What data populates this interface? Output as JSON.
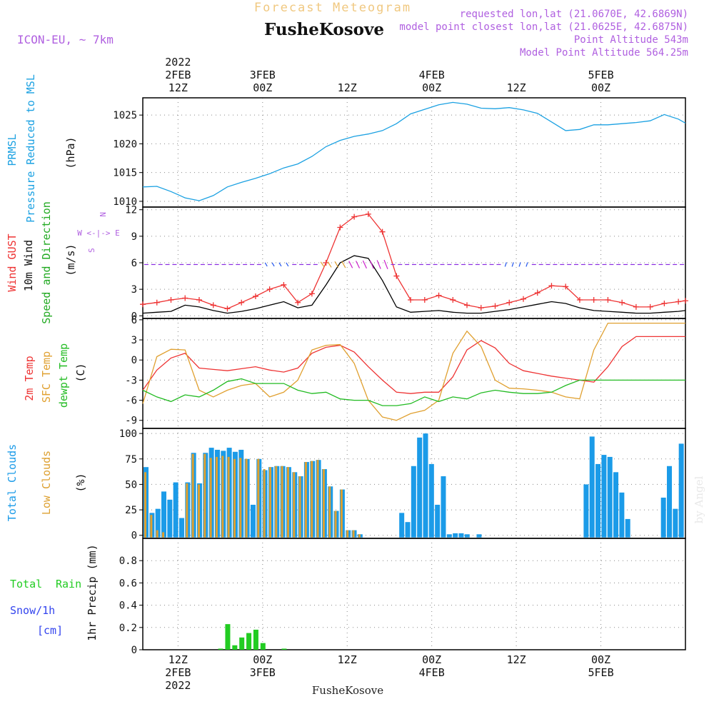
{
  "header": {
    "title_top": "Forecast Meteogram",
    "station": "FusheKosove",
    "model": "ICON-EU, ~ 7km",
    "requested_point": "requested lon,lat (21.0670E, 42.6869N)",
    "model_point": "model point closest lon,lat (21.0625E, 42.6875N)",
    "point_altitude": "Point Altitude 543m",
    "model_altitude": "Model Point Altitude 564.25m",
    "footer_station": "FusheKosove",
    "watermark": "by Angel"
  },
  "colors": {
    "pressure": "#1ba1e2",
    "gust": "#ee3333",
    "wind": "#000000",
    "direction": "#22aa22",
    "temp": "#ee3333",
    "sfc_temp": "#e0a030",
    "dewpt": "#22bb22",
    "total_clouds": "#1b9be8",
    "low_clouds": "#dda030",
    "rain": "#22cc22",
    "snow": "#3344ee",
    "title_purple": "#b060e0",
    "grid": "#888888"
  },
  "time_axis": {
    "top_labels": [
      {
        "day": "2022",
        "date": "2FEB",
        "hour": "12Z"
      },
      {
        "date": "3FEB",
        "hour": "00Z"
      },
      {
        "hour": "12Z"
      },
      {
        "date": "4FEB",
        "hour": "00Z"
      },
      {
        "hour": "12Z"
      },
      {
        "date": "5FEB",
        "hour": "00Z"
      }
    ],
    "bottom_labels": [
      {
        "hour": "12Z",
        "date": "2FEB",
        "year": "2022"
      },
      {
        "hour": "00Z",
        "date": "3FEB"
      },
      {
        "hour": "12Z"
      },
      {
        "hour": "00Z",
        "date": "4FEB"
      },
      {
        "hour": "12Z"
      },
      {
        "hour": "00Z",
        "date": "5FEB"
      }
    ],
    "start_hour": 7,
    "end_hour": 84
  },
  "chart_data": [
    {
      "type": "line",
      "title": "PRMSL Pressure Reduced to MSL",
      "ylabel": "(hPa)",
      "ylim": [
        1009,
        1028
      ],
      "yticks": [
        1010,
        1015,
        1020,
        1025
      ],
      "x_hours": [
        7,
        9,
        11,
        13,
        15,
        17,
        19,
        21,
        23,
        25,
        27,
        29,
        31,
        33,
        35,
        37,
        39,
        41,
        43,
        45,
        47,
        49,
        51,
        53,
        55,
        57,
        59,
        61,
        63,
        65,
        67,
        69,
        71,
        73,
        75,
        77,
        79,
        81,
        83,
        84
      ],
      "values": [
        1012.5,
        1012.6,
        1011.7,
        1010.6,
        1010.1,
        1011.0,
        1012.5,
        1013.3,
        1014.0,
        1014.8,
        1015.8,
        1016.5,
        1017.8,
        1019.5,
        1020.6,
        1021.3,
        1021.7,
        1022.3,
        1023.5,
        1025.2,
        1026.0,
        1026.8,
        1027.2,
        1026.9,
        1026.2,
        1026.1,
        1026.3,
        1025.9,
        1025.3,
        1023.8,
        1022.3,
        1022.5,
        1023.3,
        1023.3,
        1023.5,
        1023.7,
        1024.0,
        1025.1,
        1024.3,
        1023.6
      ],
      "series_name": "PRMSL"
    },
    {
      "type": "line",
      "title": "Wind GUST / 10m Wind Speed and Direction",
      "ylabel": "(m/s)",
      "ylim": [
        -0.3,
        12.3
      ],
      "yticks": [
        0,
        3,
        6,
        9,
        12
      ],
      "direction_legend": [
        "N",
        "W <-|-> E",
        "S"
      ],
      "x_hours": [
        7,
        9,
        11,
        13,
        15,
        17,
        19,
        21,
        23,
        25,
        27,
        29,
        31,
        33,
        35,
        37,
        39,
        41,
        43,
        45,
        47,
        49,
        51,
        53,
        55,
        57,
        59,
        61,
        63,
        65,
        67,
        69,
        71,
        73,
        75,
        77,
        79,
        81,
        83,
        84
      ],
      "series": [
        {
          "name": "Wind GUST",
          "values": [
            1.3,
            1.5,
            1.8,
            2.0,
            1.8,
            1.2,
            0.8,
            1.5,
            2.2,
            3.0,
            3.5,
            1.5,
            2.5,
            6.0,
            10.0,
            11.2,
            11.5,
            9.5,
            4.5,
            1.8,
            1.8,
            2.3,
            1.8,
            1.2,
            0.9,
            1.1,
            1.5,
            1.9,
            2.6,
            3.4,
            3.3,
            1.8,
            1.8,
            1.8,
            1.5,
            1.0,
            1.0,
            1.4,
            1.6,
            1.7
          ]
        },
        {
          "name": "10m Wind",
          "values": [
            0.3,
            0.4,
            0.5,
            1.2,
            1.0,
            0.6,
            0.3,
            0.5,
            0.8,
            1.2,
            1.6,
            0.9,
            1.2,
            3.5,
            6.0,
            6.8,
            6.5,
            4.0,
            1.0,
            0.4,
            0.5,
            0.6,
            0.4,
            0.3,
            0.3,
            0.5,
            0.7,
            1.0,
            1.3,
            1.6,
            1.4,
            0.9,
            0.6,
            0.5,
            0.4,
            0.3,
            0.3,
            0.4,
            0.5,
            0.6
          ]
        }
      ]
    },
    {
      "type": "line",
      "title": "2m Temp / SFC Temp / dewpt Temp",
      "ylabel": "(C)",
      "ylim": [
        -10.2,
        6.2
      ],
      "yticks": [
        -9,
        -6,
        -3,
        0,
        3,
        6
      ],
      "x_hours": [
        7,
        9,
        11,
        13,
        15,
        17,
        19,
        21,
        23,
        25,
        27,
        29,
        31,
        33,
        35,
        37,
        39,
        41,
        43,
        45,
        47,
        49,
        51,
        53,
        55,
        57,
        59,
        61,
        63,
        65,
        67,
        69,
        71,
        73,
        75,
        77,
        79,
        81,
        83,
        84
      ],
      "series": [
        {
          "name": "2m Temp",
          "values": [
            -4.5,
            -1.5,
            0.3,
            1.0,
            -1.2,
            -1.4,
            -1.6,
            -1.3,
            -1.0,
            -1.5,
            -1.8,
            -1.2,
            1.0,
            1.9,
            2.2,
            1.2,
            -1.0,
            -3.0,
            -4.8,
            -5.0,
            -4.8,
            -4.8,
            -2.5,
            1.5,
            2.9,
            1.8,
            -0.5,
            -1.6,
            -2.0,
            -2.4,
            -2.7,
            -3.0,
            -3.3,
            -1.0,
            2.0,
            3.5,
            3.5,
            3.5,
            3.5,
            3.5
          ]
        },
        {
          "name": "SFC Temp",
          "values": [
            -6.5,
            0.5,
            1.6,
            1.5,
            -4.5,
            -5.5,
            -4.5,
            -3.8,
            -3.5,
            -5.5,
            -4.8,
            -3.0,
            1.5,
            2.2,
            2.3,
            -0.5,
            -6.0,
            -8.5,
            -9.0,
            -8.0,
            -7.5,
            -6.0,
            1.0,
            4.3,
            2.0,
            -3.0,
            -4.2,
            -4.3,
            -4.5,
            -4.8,
            -5.5,
            -5.8,
            1.5,
            5.5,
            5.5,
            5.5,
            5.5,
            5.5,
            5.5,
            5.5
          ]
        },
        {
          "name": "dewpt Temp",
          "values": [
            -4.5,
            -5.5,
            -6.2,
            -5.2,
            -5.5,
            -4.5,
            -3.2,
            -2.8,
            -3.5,
            -3.5,
            -3.5,
            -4.5,
            -5.0,
            -4.8,
            -5.8,
            -6.0,
            -6.0,
            -6.8,
            -6.8,
            -6.5,
            -5.5,
            -6.2,
            -5.5,
            -5.8,
            -4.9,
            -4.5,
            -4.8,
            -5.0,
            -5.0,
            -4.8,
            -3.8,
            -3.0,
            -3.0,
            -3.0,
            -3.0,
            -3.0,
            -3.0,
            -3.0,
            -3.0,
            -3.0
          ]
        }
      ]
    },
    {
      "type": "bar",
      "title": "Total Clouds / Low Clouds",
      "ylabel": "(%)",
      "ylim": [
        -3,
        105
      ],
      "yticks": [
        0,
        25,
        50,
        75,
        100
      ],
      "x_hours_start": 7,
      "series": [
        {
          "name": "Total Clouds",
          "values": [
            67,
            22,
            26,
            43,
            35,
            52,
            17,
            52,
            81,
            51,
            81,
            86,
            84,
            83,
            86,
            82,
            84,
            75,
            30,
            75,
            64,
            67,
            68,
            68,
            67,
            62,
            58,
            72,
            73,
            74,
            65,
            48,
            24,
            45,
            5,
            5,
            1,
            0,
            0,
            0,
            0,
            0,
            0,
            22,
            13,
            68,
            96,
            100,
            70,
            30,
            58,
            1,
            2,
            2,
            1,
            0,
            1,
            0,
            0,
            0,
            0,
            0,
            0,
            0,
            0,
            0,
            0,
            0,
            0,
            0,
            0,
            0,
            0,
            0,
            50,
            97,
            70,
            79,
            77,
            62,
            42,
            16,
            0,
            0,
            0,
            0,
            0,
            37,
            68,
            26,
            90
          ]
        },
        {
          "name": "Low Clouds",
          "values": [
            62,
            20,
            5,
            3,
            0,
            0,
            0,
            51,
            80,
            50,
            80,
            76,
            77,
            78,
            77,
            75,
            76,
            75,
            0,
            75,
            65,
            67,
            68,
            68,
            67,
            62,
            58,
            72,
            73,
            74,
            65,
            48,
            24,
            45,
            5,
            5,
            1,
            0,
            0,
            0,
            0,
            0,
            0,
            0,
            0,
            0,
            0,
            0,
            0,
            0,
            0,
            0,
            0,
            0,
            0,
            0,
            0,
            0,
            0,
            0,
            0,
            0,
            0,
            0,
            0,
            0,
            0,
            0,
            0,
            0,
            0,
            0,
            0,
            0,
            0,
            0,
            0,
            0,
            0,
            0,
            0,
            0,
            0,
            0,
            0,
            0,
            0,
            0,
            0,
            0,
            0
          ]
        }
      ]
    },
    {
      "type": "bar",
      "title": "Total Rain / Snow/1h [cm]",
      "ylabel": "1hr Precip (mm)",
      "ylim": [
        0,
        1.0
      ],
      "yticks": [
        0,
        0.2,
        0.4,
        0.6,
        0.8
      ],
      "ytick_labels": [
        "0",
        "0.2",
        "0.4",
        "0.6",
        "0.8"
      ],
      "x_hours": [
        18,
        19,
        20,
        21,
        22,
        23,
        24,
        27
      ],
      "series": [
        {
          "name": "Total Rain",
          "values": [
            0.01,
            0.23,
            0.04,
            0.11,
            0.15,
            0.18,
            0.06,
            0.01
          ]
        }
      ]
    }
  ],
  "panel_labels": {
    "p1": {
      "a": "PRMSL",
      "b": "Pressure Reduced to MSL",
      "unit": "(hPa)"
    },
    "p2": {
      "a": "Wind GUST",
      "b": "10m Wind",
      "c": "Speed and Direction",
      "unit": "(m/s)",
      "dir_n": "N",
      "dir_we": "W <-|-> E",
      "dir_s": "S"
    },
    "p3": {
      "a": "2m Temp",
      "b": "SFC Temp",
      "c": "dewpt Temp",
      "unit": "(C)"
    },
    "p4": {
      "a": "Total Clouds",
      "b": "Low Clouds",
      "unit": "(%)"
    },
    "p5": {
      "a": "Total",
      "a2": "Rain",
      "b": "Snow/1h",
      "c": "[cm]",
      "unit": "1hr Precip (mm)"
    }
  }
}
